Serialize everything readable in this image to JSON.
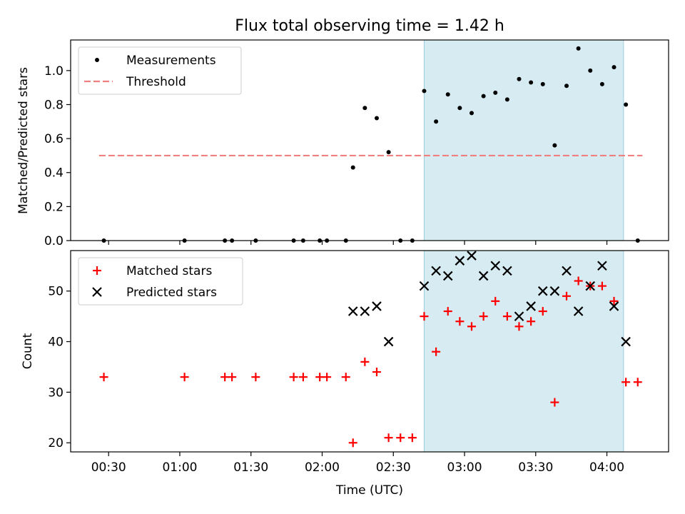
{
  "chart_data": [
    {
      "type": "scatter",
      "title": "Flux total observing time = 1.42 h",
      "xlabel": "",
      "ylabel": "Matched/Predicted stars",
      "ylim": [
        0.0,
        1.18
      ],
      "xlim": [
        "00:14",
        "04:26"
      ],
      "y_ticks": [
        "0.0",
        "0.2",
        "0.4",
        "0.6",
        "0.8",
        "1.0"
      ],
      "shaded_region": {
        "start": "02:43",
        "end": "04:07",
        "color": "#add8e6"
      },
      "legend_position": "top-left",
      "series": [
        {
          "name": "Measurements",
          "marker": "dot",
          "color": "#000000",
          "points": [
            [
              "00:28",
              0.0
            ],
            [
              "01:02",
              0.0
            ],
            [
              "01:19",
              0.0
            ],
            [
              "01:22",
              0.0
            ],
            [
              "01:32",
              0.0
            ],
            [
              "01:48",
              0.0
            ],
            [
              "01:52",
              0.0
            ],
            [
              "01:59",
              0.0
            ],
            [
              "02:02",
              0.0
            ],
            [
              "02:10",
              0.0
            ],
            [
              "02:13",
              0.43
            ],
            [
              "02:18",
              0.78
            ],
            [
              "02:23",
              0.72
            ],
            [
              "02:28",
              0.52
            ],
            [
              "02:33",
              0.0
            ],
            [
              "02:38",
              0.0
            ],
            [
              "02:43",
              0.88
            ],
            [
              "02:48",
              0.7
            ],
            [
              "02:53",
              0.86
            ],
            [
              "02:58",
              0.78
            ],
            [
              "03:03",
              0.75
            ],
            [
              "03:08",
              0.85
            ],
            [
              "03:13",
              0.87
            ],
            [
              "03:18",
              0.83
            ],
            [
              "03:23",
              0.95
            ],
            [
              "03:28",
              0.93
            ],
            [
              "03:33",
              0.92
            ],
            [
              "03:38",
              0.56
            ],
            [
              "03:43",
              0.91
            ],
            [
              "03:48",
              1.13
            ],
            [
              "03:53",
              1.0
            ],
            [
              "03:58",
              0.92
            ],
            [
              "04:03",
              1.02
            ],
            [
              "04:08",
              0.8
            ],
            [
              "04:13",
              0.0
            ]
          ]
        },
        {
          "name": "Threshold",
          "type": "line",
          "style": "dashed",
          "color": "#f08080",
          "x_range": [
            "00:26",
            "04:15"
          ],
          "value": 0.5
        }
      ]
    },
    {
      "type": "scatter",
      "title": "",
      "xlabel": "Time (UTC)",
      "ylabel": "Count",
      "ylim": [
        18.2,
        58.0
      ],
      "xlim": [
        "00:14",
        "04:26"
      ],
      "x_ticks": [
        "00:30",
        "01:00",
        "01:30",
        "02:00",
        "02:30",
        "03:00",
        "03:30",
        "04:00"
      ],
      "y_ticks": [
        "20",
        "30",
        "40",
        "50"
      ],
      "shaded_region": {
        "start": "02:43",
        "end": "04:07",
        "color": "#add8e6"
      },
      "legend_position": "top-left",
      "series": [
        {
          "name": "Matched stars",
          "marker": "plus",
          "color": "#ff0000",
          "points": [
            [
              "00:28",
              33
            ],
            [
              "01:02",
              33
            ],
            [
              "01:19",
              33
            ],
            [
              "01:22",
              33
            ],
            [
              "01:32",
              33
            ],
            [
              "01:48",
              33
            ],
            [
              "01:52",
              33
            ],
            [
              "01:59",
              33
            ],
            [
              "02:02",
              33
            ],
            [
              "02:10",
              33
            ],
            [
              "02:13",
              20
            ],
            [
              "02:18",
              36
            ],
            [
              "02:23",
              34
            ],
            [
              "02:28",
              21
            ],
            [
              "02:33",
              21
            ],
            [
              "02:38",
              21
            ],
            [
              "02:43",
              45
            ],
            [
              "02:48",
              38
            ],
            [
              "02:53",
              46
            ],
            [
              "02:58",
              44
            ],
            [
              "03:03",
              43
            ],
            [
              "03:08",
              45
            ],
            [
              "03:13",
              48
            ],
            [
              "03:18",
              45
            ],
            [
              "03:23",
              43
            ],
            [
              "03:28",
              44
            ],
            [
              "03:33",
              46
            ],
            [
              "03:38",
              28
            ],
            [
              "03:43",
              49
            ],
            [
              "03:48",
              52
            ],
            [
              "03:53",
              51
            ],
            [
              "03:58",
              51
            ],
            [
              "04:03",
              48
            ],
            [
              "04:08",
              32
            ],
            [
              "04:13",
              32
            ]
          ]
        },
        {
          "name": "Predicted stars",
          "marker": "x",
          "color": "#000000",
          "points": [
            [
              "02:13",
              46
            ],
            [
              "02:18",
              46
            ],
            [
              "02:23",
              47
            ],
            [
              "02:28",
              40
            ],
            [
              "02:43",
              51
            ],
            [
              "02:48",
              54
            ],
            [
              "02:53",
              53
            ],
            [
              "02:58",
              56
            ],
            [
              "03:03",
              57
            ],
            [
              "03:08",
              53
            ],
            [
              "03:13",
              55
            ],
            [
              "03:18",
              54
            ],
            [
              "03:23",
              45
            ],
            [
              "03:28",
              47
            ],
            [
              "03:33",
              50
            ],
            [
              "03:38",
              50
            ],
            [
              "03:43",
              54
            ],
            [
              "03:48",
              46
            ],
            [
              "03:53",
              51
            ],
            [
              "03:58",
              55
            ],
            [
              "04:03",
              47
            ],
            [
              "04:08",
              40
            ]
          ]
        }
      ]
    }
  ]
}
